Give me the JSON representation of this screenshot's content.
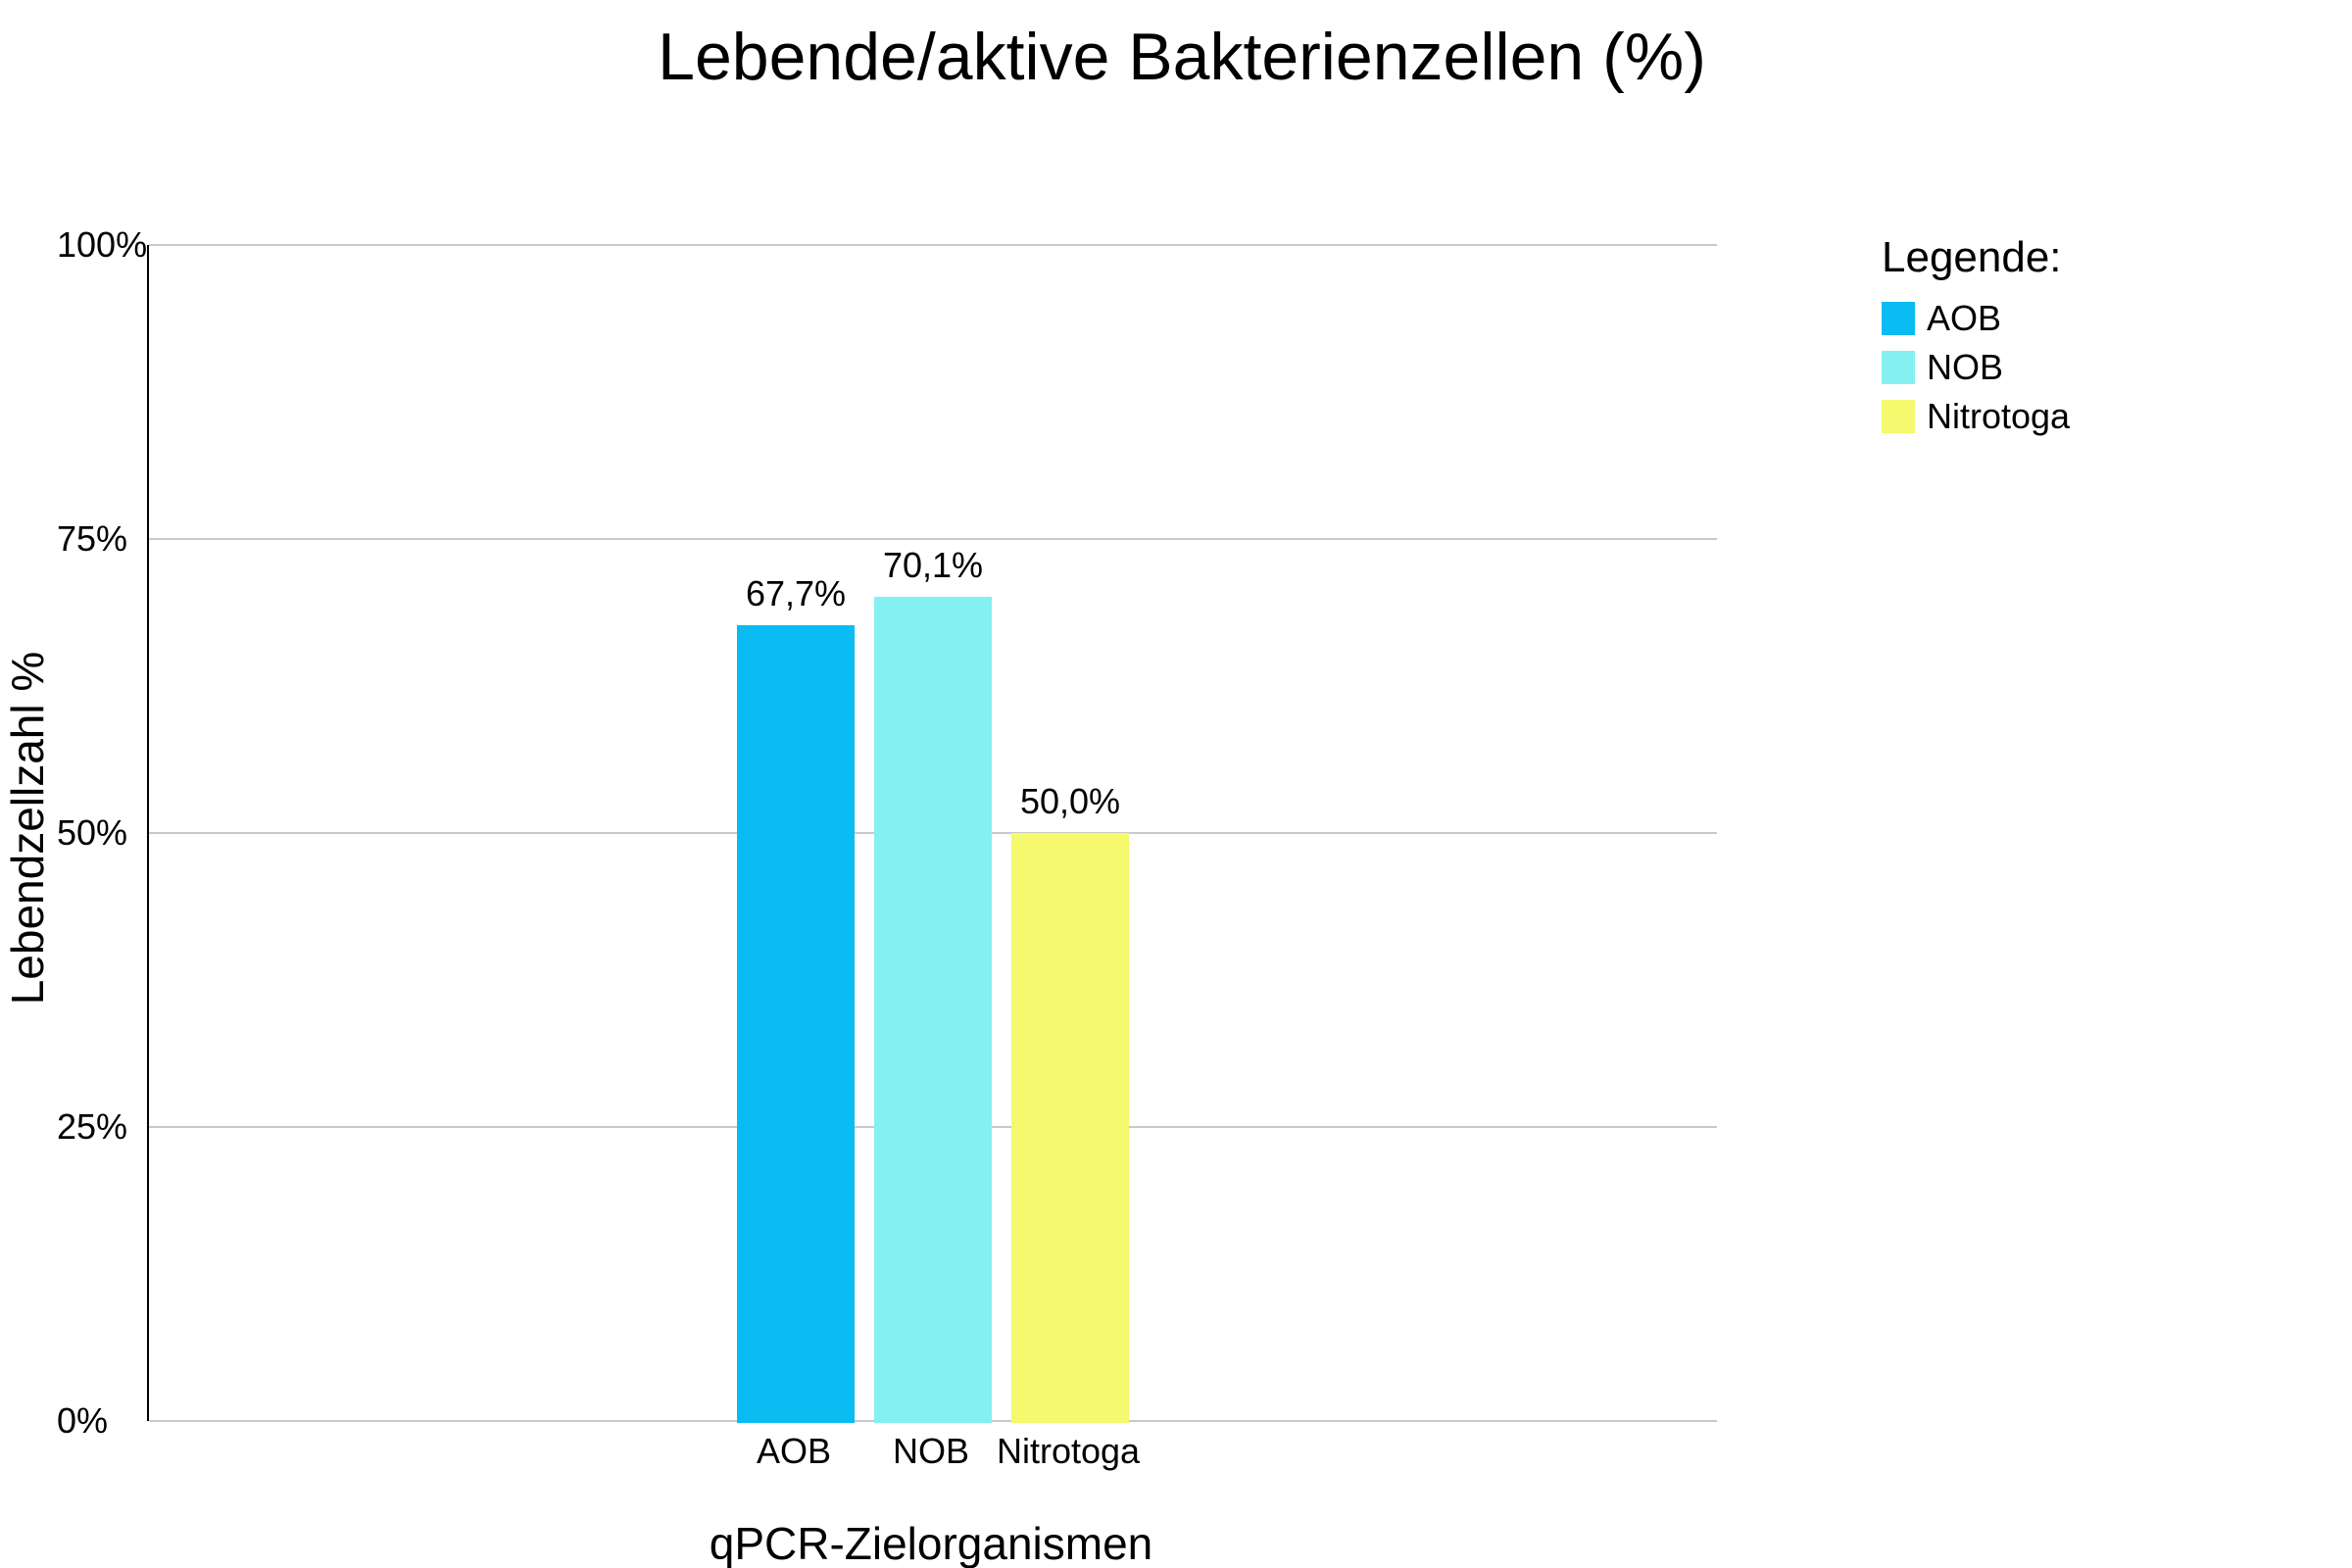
{
  "chart_data": {
    "type": "bar",
    "title": "Lebende/aktive Bakterienzellen (%)",
    "xlabel": "qPCR-Zielorganismen",
    "ylabel": "Lebendzellzahl %",
    "categories": [
      "AOB",
      "NOB",
      "Nitrotoga"
    ],
    "values": [
      67.7,
      70.1,
      50.0
    ],
    "value_labels": [
      "67,7%",
      "70,1%",
      "50,0%"
    ],
    "bar_colors": [
      "#0ABCF2",
      "#84F0F2",
      "#F4F96E"
    ],
    "ylim": [
      0,
      100
    ],
    "y_tick_values": [
      0,
      25,
      50,
      75,
      100
    ],
    "y_tick_labels": [
      "0%",
      "25%",
      "50%",
      "75%",
      "100%"
    ],
    "grid": true,
    "legend_position": "upper right",
    "legend": {
      "title": "Legende:",
      "entries": [
        {
          "label": "AOB",
          "color": "#0ABCF2"
        },
        {
          "label": "NOB",
          "color": "#84F0F2"
        },
        {
          "label": "Nitrotoga",
          "color": "#F4F96E"
        }
      ]
    },
    "colors": {
      "grid": "#C9C9C9",
      "axis": "#000000",
      "text": "#000000",
      "background": "#FFFFFF"
    }
  }
}
